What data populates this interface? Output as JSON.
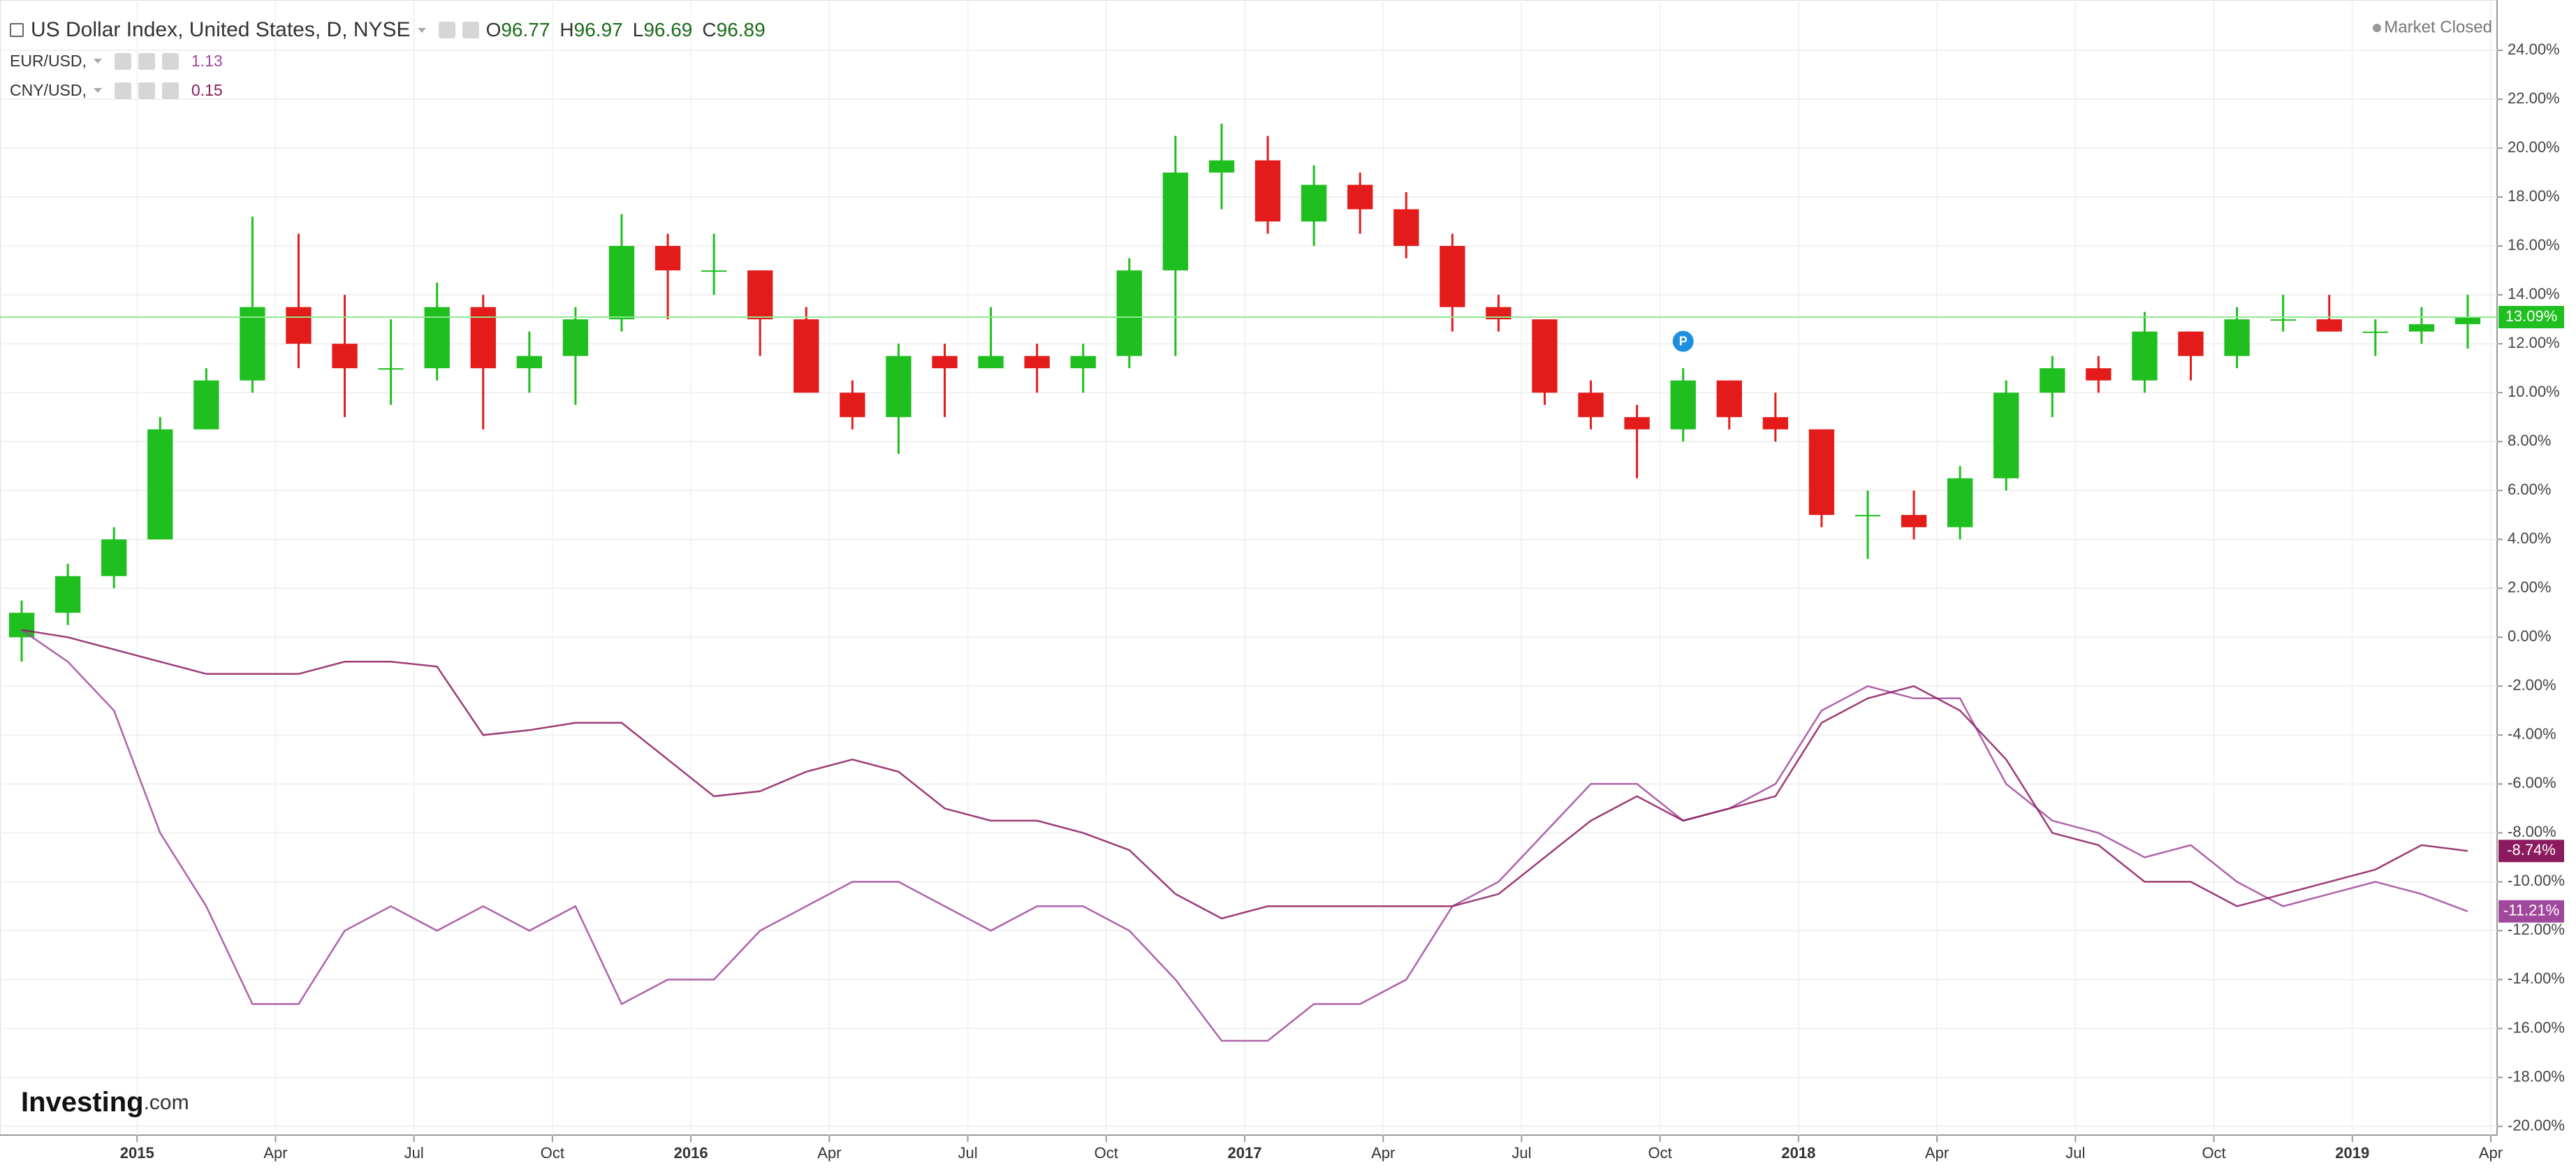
{
  "header": {
    "title": "US Dollar Index, United States, D, NYSE",
    "ohlc": [
      {
        "key": "O",
        "value": 96.77
      },
      {
        "key": "H",
        "value": 96.97
      },
      {
        "key": "L",
        "value": 96.69
      },
      {
        "key": "C",
        "value": 96.89
      }
    ],
    "status": "Market Closed"
  },
  "watermark": {
    "main": "Investing",
    "suffix": ".com"
  },
  "chart_data": {
    "type": "candlestick",
    "x": [
      "2014-10",
      "2014-11",
      "2014-12",
      "2015-01",
      "2015-02",
      "2015-03",
      "2015-04",
      "2015-05",
      "2015-06",
      "2015-07",
      "2015-08",
      "2015-09",
      "2015-10",
      "2015-11",
      "2015-12",
      "2016-01",
      "2016-02",
      "2016-03",
      "2016-04",
      "2016-05",
      "2016-06",
      "2016-07",
      "2016-08",
      "2016-09",
      "2016-10",
      "2016-11",
      "2016-12",
      "2017-01",
      "2017-02",
      "2017-03",
      "2017-04",
      "2017-05",
      "2017-06",
      "2017-07",
      "2017-08",
      "2017-09",
      "2017-10",
      "2017-11",
      "2017-12",
      "2018-01",
      "2018-02",
      "2018-03",
      "2018-04",
      "2018-05",
      "2018-06",
      "2018-07",
      "2018-08",
      "2018-09",
      "2018-10",
      "2018-11",
      "2018-12",
      "2019-01",
      "2019-02",
      "2019-03"
    ],
    "open": [
      0,
      1,
      2.5,
      4,
      8.5,
      10.5,
      13.5,
      12,
      11,
      11,
      13.5,
      11,
      11.5,
      13,
      16,
      15,
      15,
      13,
      10,
      9,
      11.5,
      11,
      11.5,
      11,
      11.5,
      15,
      19,
      19.5,
      17,
      18.5,
      17.5,
      16,
      13.5,
      13,
      10,
      9,
      8.5,
      10.5,
      9,
      8.5,
      5,
      5,
      4.5,
      6.5,
      10,
      11,
      10.5,
      12.5,
      11.5,
      13,
      13,
      12.5,
      12.5,
      12.8
    ],
    "high": [
      1.5,
      3,
      4.5,
      9,
      11,
      17.2,
      16.5,
      14,
      13,
      14.5,
      14,
      12.5,
      13.5,
      17.3,
      16.5,
      16.5,
      15,
      13.5,
      10.5,
      12,
      12,
      13.5,
      12,
      12,
      15.5,
      20.5,
      21,
      20.5,
      19.3,
      19,
      18.2,
      16.5,
      14,
      13,
      10.5,
      9.5,
      11,
      10.5,
      10,
      8.5,
      6,
      6,
      7,
      10.5,
      11.5,
      11.5,
      13.3,
      12.5,
      13.5,
      14,
      14,
      13,
      13.5,
      14
    ],
    "low": [
      -1,
      0.5,
      2,
      4,
      8.5,
      10,
      11,
      9,
      9.5,
      10.5,
      8.5,
      10,
      9.5,
      12.5,
      13,
      14,
      11.5,
      10,
      8.5,
      7.5,
      9,
      11,
      10,
      10,
      11,
      11.5,
      17.5,
      16.5,
      16,
      16.5,
      15.5,
      12.5,
      12.5,
      9.5,
      8.5,
      6.5,
      8,
      8.5,
      8,
      4.5,
      3.2,
      4,
      4,
      6,
      9,
      10,
      10,
      10.5,
      11,
      12.5,
      12.5,
      11.5,
      12,
      11.8
    ],
    "close": [
      1,
      2.5,
      4,
      8.5,
      10.5,
      13.5,
      12,
      11,
      11,
      13.5,
      11,
      11.5,
      13,
      16,
      15,
      15,
      13,
      10,
      9,
      11.5,
      11,
      11.5,
      11,
      11.5,
      15,
      19,
      19.5,
      17,
      18.5,
      17.5,
      16,
      13.5,
      13,
      10,
      9,
      8.5,
      10.5,
      9,
      8.5,
      5,
      5,
      4.5,
      6.5,
      10,
      11,
      10.5,
      12.5,
      11.5,
      13,
      13,
      12.5,
      12.5,
      12.8,
      13.09
    ],
    "close_labels": [
      null,
      null,
      null,
      null,
      null,
      null,
      null,
      null,
      null,
      null,
      null,
      null,
      null,
      null,
      null,
      null,
      null,
      null,
      null,
      null,
      null,
      null,
      null,
      null,
      null,
      null,
      null,
      null,
      null,
      null,
      null,
      null,
      null,
      null,
      null,
      null,
      null,
      null,
      null,
      null,
      null,
      null,
      null,
      null,
      null,
      null,
      null,
      null,
      null,
      null,
      null,
      null,
      null,
      "13.09%"
    ],
    "up_color": "#1fbf1f",
    "down_color": "#e31b1b",
    "last_line_color": "#8ee88e",
    "series": [
      {
        "name": "EUR/USD,",
        "legend_value": 1.13,
        "color": "#a0489c",
        "values": [
          0.3,
          -1,
          -3,
          -8,
          -11,
          -15,
          -15,
          -12,
          -11,
          -12,
          -11,
          -12,
          -11,
          -15,
          -14,
          -14,
          -12,
          -11,
          -10,
          -10,
          -11,
          -12,
          -11,
          -11,
          -12,
          -14,
          -16.5,
          -16.5,
          -15,
          -15,
          -14,
          -11,
          -10,
          -8,
          -6,
          -6,
          -7.5,
          -7,
          -6,
          -3,
          -2,
          -2.5,
          -2.5,
          -6,
          -7.5,
          -8,
          -9,
          -8.5,
          -10,
          -11,
          -10.5,
          -10,
          -10.5,
          -11.21
        ],
        "value_labels": [
          null,
          null,
          null,
          null,
          null,
          null,
          null,
          null,
          null,
          null,
          null,
          null,
          null,
          null,
          null,
          null,
          null,
          null,
          null,
          null,
          null,
          null,
          null,
          null,
          null,
          null,
          null,
          null,
          null,
          null,
          null,
          null,
          null,
          null,
          null,
          null,
          null,
          null,
          null,
          null,
          null,
          null,
          null,
          null,
          null,
          null,
          null,
          null,
          null,
          null,
          null,
          null,
          null,
          "-11.21%"
        ]
      },
      {
        "name": "CNY/USD,",
        "legend_value": 0.15,
        "color": "#8c1a5e",
        "values": [
          0.3,
          0,
          -0.5,
          -1,
          -1.5,
          -1.5,
          -1.5,
          -1,
          -1,
          -1.2,
          -4,
          -3.8,
          -3.5,
          -3.5,
          -5,
          -6.5,
          -6.3,
          -5.5,
          -5,
          -5.5,
          -7,
          -7.5,
          -7.5,
          -8,
          -8.7,
          -10.5,
          -11.5,
          -11,
          -11,
          -11,
          -11,
          -11,
          -10.5,
          -9,
          -7.5,
          -6.5,
          -7.5,
          -7,
          -6.5,
          -3.5,
          -2.5,
          -2,
          -3,
          -5,
          -8,
          -8.5,
          -10,
          -10,
          -11,
          -10.5,
          -10,
          -9.5,
          -8.5,
          -8.74
        ],
        "value_labels": [
          null,
          null,
          null,
          null,
          null,
          null,
          null,
          null,
          null,
          null,
          null,
          null,
          null,
          null,
          null,
          null,
          null,
          null,
          null,
          null,
          null,
          null,
          null,
          null,
          null,
          null,
          null,
          null,
          null,
          null,
          null,
          null,
          null,
          null,
          null,
          null,
          null,
          null,
          null,
          null,
          null,
          null,
          null,
          null,
          null,
          null,
          null,
          null,
          null,
          null,
          null,
          null,
          null,
          "-8.74%"
        ]
      }
    ],
    "annotations": [
      {
        "text": "P",
        "x": "2017-10",
        "y": 12.1,
        "color": "#1e8fe0"
      }
    ],
    "xlim": [
      "2014-10",
      "2019-04"
    ],
    "xticks": [
      {
        "value": "2015-01",
        "label": "2015"
      },
      {
        "value": "2015-04",
        "label": "Apr"
      },
      {
        "value": "2015-07",
        "label": "Jul"
      },
      {
        "value": "2015-10",
        "label": "Oct"
      },
      {
        "value": "2016-01",
        "label": "2016"
      },
      {
        "value": "2016-04",
        "label": "Apr"
      },
      {
        "value": "2016-07",
        "label": "Jul"
      },
      {
        "value": "2016-10",
        "label": "Oct"
      },
      {
        "value": "2017-01",
        "label": "2017"
      },
      {
        "value": "2017-04",
        "label": "Apr"
      },
      {
        "value": "2017-07",
        "label": "Jul"
      },
      {
        "value": "2017-10",
        "label": "Oct"
      },
      {
        "value": "2018-01",
        "label": "2018"
      },
      {
        "value": "2018-04",
        "label": "Apr"
      },
      {
        "value": "2018-07",
        "label": "Jul"
      },
      {
        "value": "2018-10",
        "label": "Oct"
      },
      {
        "value": "2019-01",
        "label": "2019"
      },
      {
        "value": "2019-04",
        "label": "Apr"
      }
    ],
    "ylim": [
      -20.3,
      25.8
    ],
    "yticks": [
      {
        "value": 24,
        "label": "24.00%"
      },
      {
        "value": 22,
        "label": "22.00%"
      },
      {
        "value": 20,
        "label": "20.00%"
      },
      {
        "value": 18,
        "label": "18.00%"
      },
      {
        "value": 16,
        "label": "16.00%"
      },
      {
        "value": 14,
        "label": "14.00%"
      },
      {
        "value": 12,
        "label": "12.00%"
      },
      {
        "value": 10,
        "label": "10.00%"
      },
      {
        "value": 8,
        "label": "8.00%"
      },
      {
        "value": 6,
        "label": "6.00%"
      },
      {
        "value": 4,
        "label": "4.00%"
      },
      {
        "value": 2,
        "label": "2.00%"
      },
      {
        "value": 0,
        "label": "0.00%"
      },
      {
        "value": -2,
        "label": "-2.00%"
      },
      {
        "value": -4,
        "label": "-4.00%"
      },
      {
        "value": -6,
        "label": "-6.00%"
      },
      {
        "value": -8,
        "label": "-8.00%"
      },
      {
        "value": -10,
        "label": "-10.00%"
      },
      {
        "value": -12,
        "label": "-12.00%"
      },
      {
        "value": -14,
        "label": "-14.00%"
      },
      {
        "value": -16,
        "label": "-16.00%"
      },
      {
        "value": -18,
        "label": "-18.00%"
      },
      {
        "value": -20,
        "label": "-20.00%"
      }
    ],
    "grid": true
  }
}
